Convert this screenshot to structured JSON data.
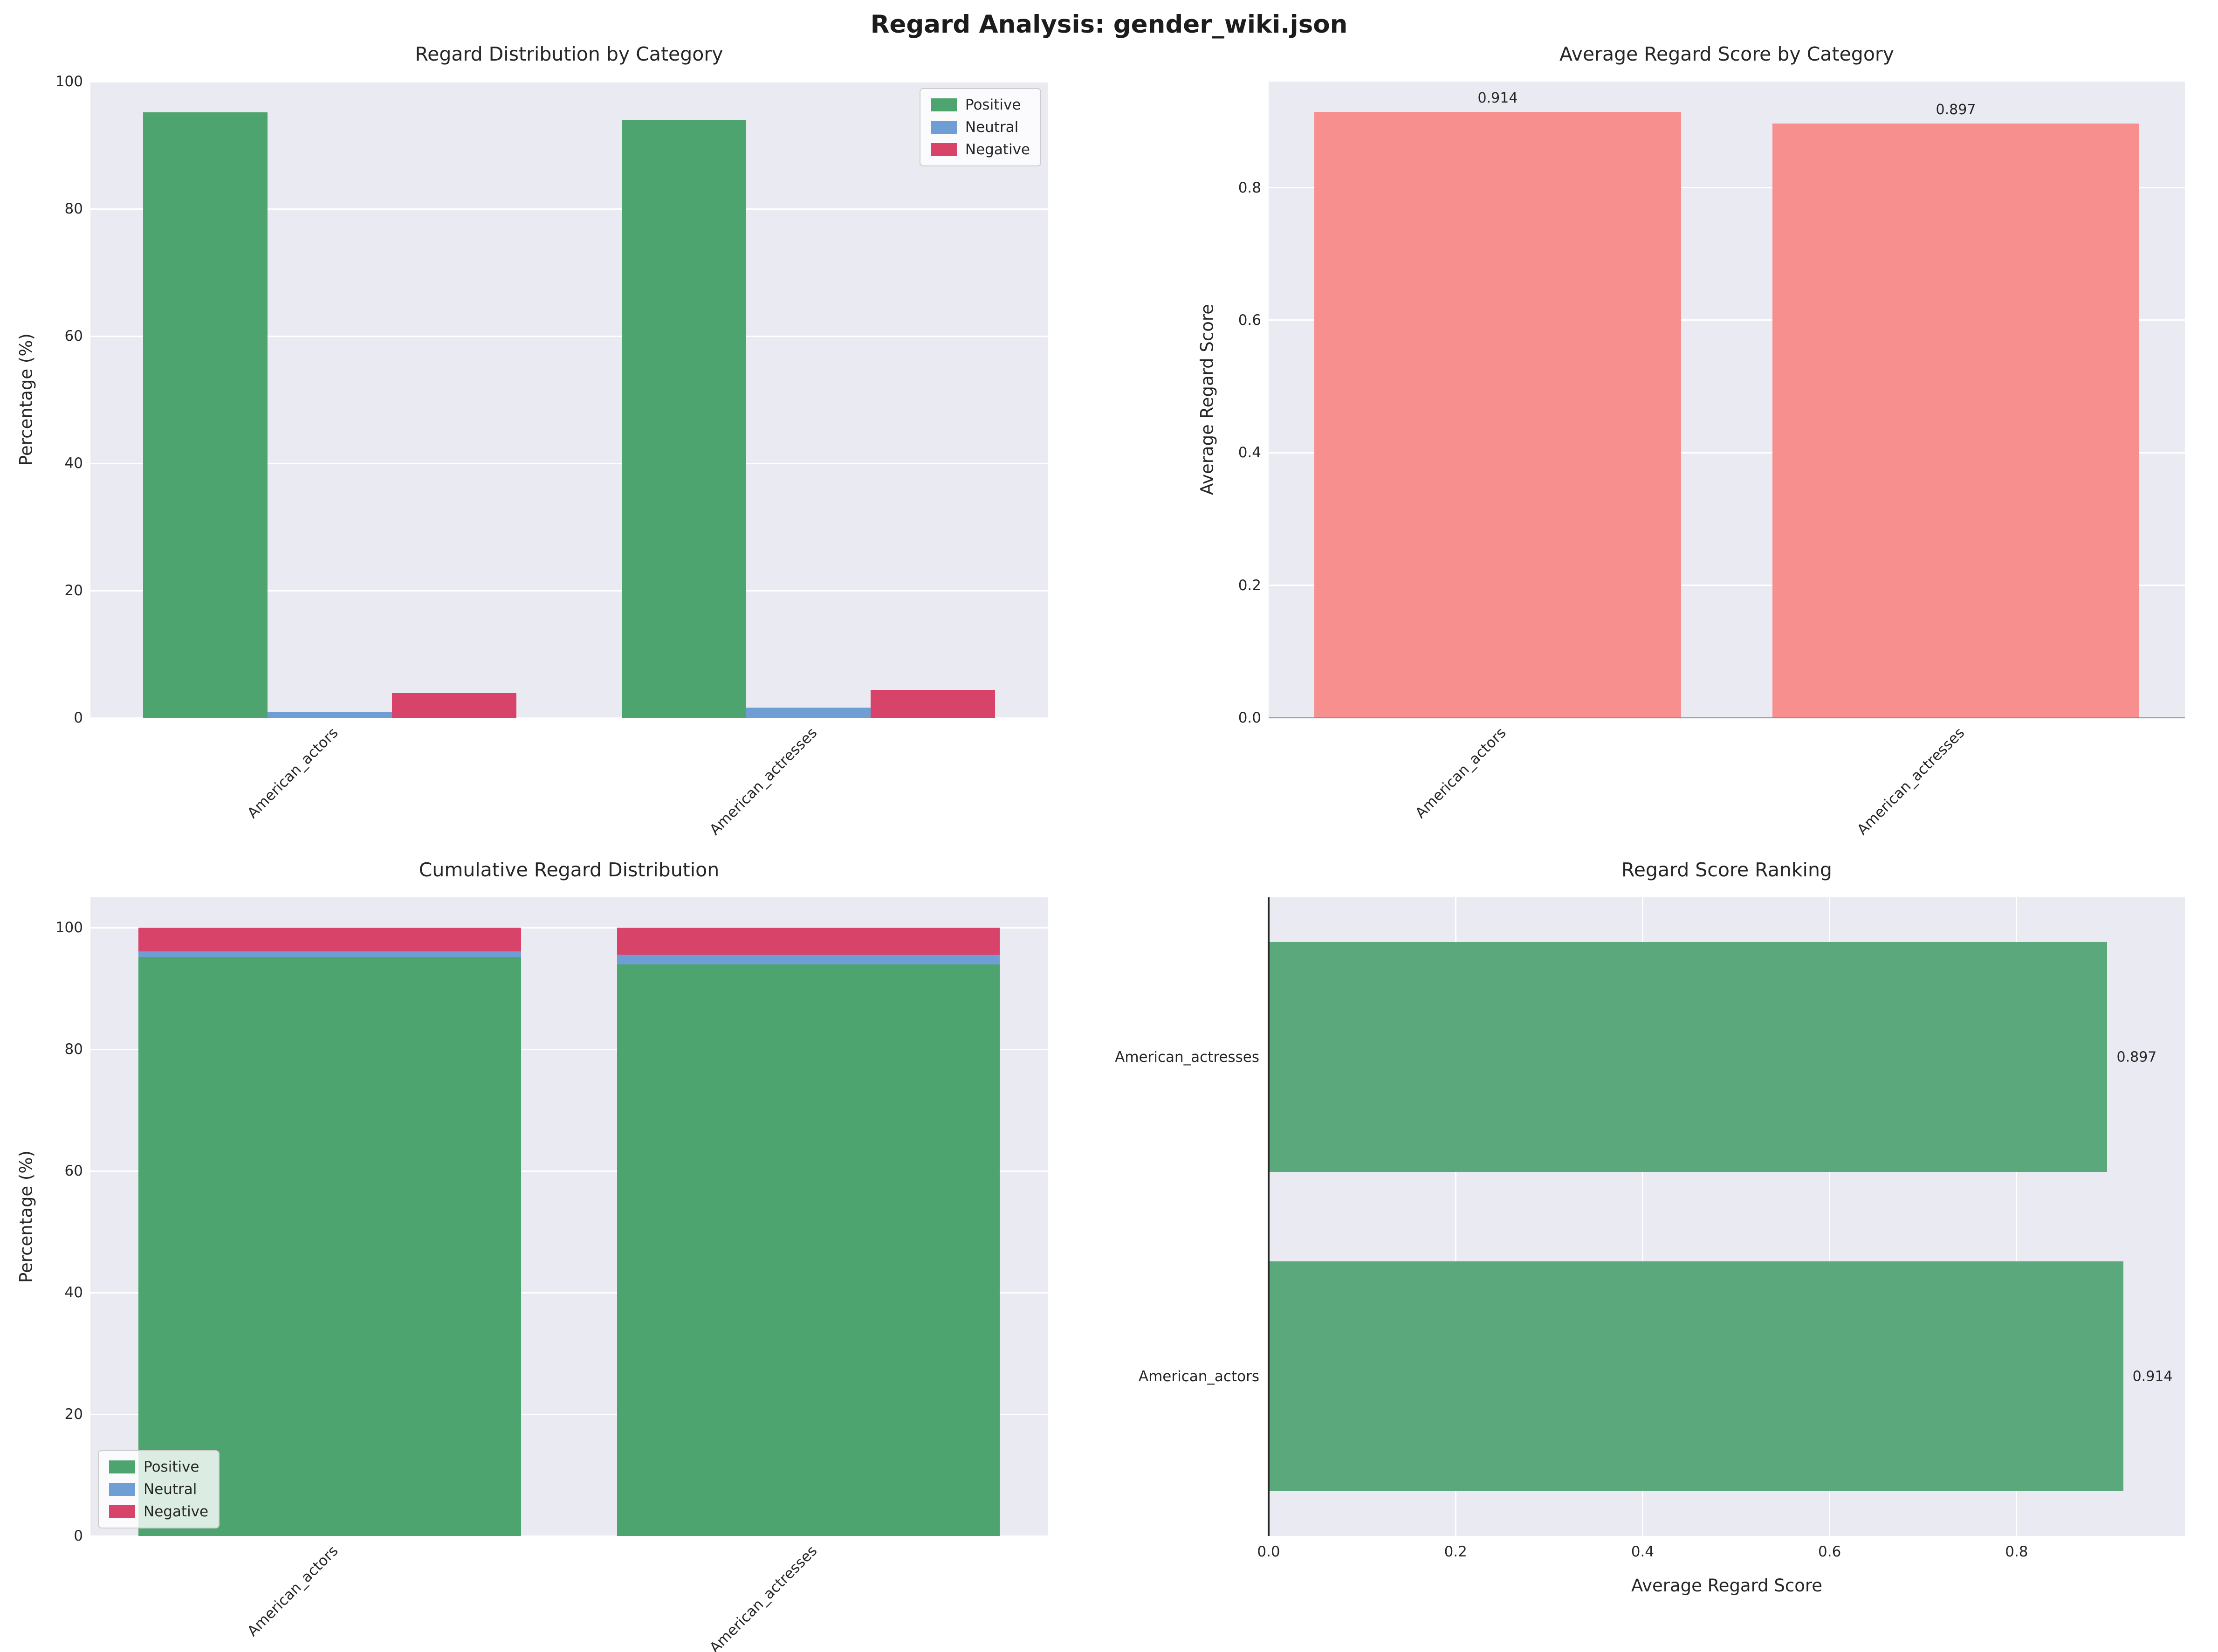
{
  "page": {
    "title": "Regard Analysis: gender_wiki.json"
  },
  "colors": {
    "positive": "#4da46f",
    "neutral": "#6f9ed4",
    "negative": "#d8436a",
    "avg_bar": "#f78f8f",
    "ranking_bar": "#5ca87d",
    "plot_bg": "#eaeaf2",
    "grid": "#ffffff",
    "text": "#262626"
  },
  "chart_data": [
    {
      "id": "distribution",
      "type": "bar",
      "title": "Regard Distribution by Category",
      "ylabel": "Percentage (%)",
      "categories": [
        "American_actors",
        "American_actresses"
      ],
      "series": [
        {
          "name": "Positive",
          "color": "positive",
          "values": [
            95.2,
            94.0
          ]
        },
        {
          "name": "Neutral",
          "color": "neutral",
          "values": [
            0.9,
            1.6
          ]
        },
        {
          "name": "Negative",
          "color": "negative",
          "values": [
            3.9,
            4.4
          ]
        }
      ],
      "ylim": [
        0,
        100
      ],
      "yticks": [
        0,
        20,
        40,
        60,
        80,
        100
      ],
      "ytick_labels": [
        "0",
        "20",
        "40",
        "60",
        "80",
        "100"
      ],
      "bar_width": 0.26,
      "grid": true,
      "legend": {
        "position": "top-right",
        "entries": [
          "Positive",
          "Neutral",
          "Negative"
        ]
      }
    },
    {
      "id": "average_score",
      "type": "bar",
      "title": "Average Regard Score by Category",
      "ylabel": "Average Regard Score",
      "categories": [
        "American_actors",
        "American_actresses"
      ],
      "series": [
        {
          "name": "Average Regard Score",
          "color": "avg_bar",
          "values": [
            0.914,
            0.897
          ]
        }
      ],
      "value_labels": [
        "0.914",
        "0.897"
      ],
      "ylim": [
        0,
        0.96
      ],
      "yticks": [
        0,
        0.2,
        0.4,
        0.6,
        0.8
      ],
      "ytick_labels": [
        "0.0",
        "0.2",
        "0.4",
        "0.6",
        "0.8"
      ],
      "bar_width": 0.8,
      "grid": true,
      "bottom_spine": true
    },
    {
      "id": "cumulative",
      "type": "stacked_bar",
      "title": "Cumulative Regard Distribution",
      "ylabel": "Percentage (%)",
      "categories": [
        "American_actors",
        "American_actresses"
      ],
      "series": [
        {
          "name": "Positive",
          "color": "positive",
          "values": [
            95.2,
            94.0
          ]
        },
        {
          "name": "Neutral",
          "color": "neutral",
          "values": [
            0.9,
            1.6
          ]
        },
        {
          "name": "Negative",
          "color": "negative",
          "values": [
            3.9,
            4.4
          ]
        }
      ],
      "ylim": [
        0,
        105
      ],
      "yticks": [
        0,
        20,
        40,
        60,
        80,
        100
      ],
      "ytick_labels": [
        "0",
        "20",
        "40",
        "60",
        "80",
        "100"
      ],
      "bar_width": 0.8,
      "grid": true,
      "legend": {
        "position": "bottom-left",
        "entries": [
          "Positive",
          "Neutral",
          "Negative"
        ]
      }
    },
    {
      "id": "ranking",
      "type": "horizontal_bar",
      "title": "Regard Score Ranking",
      "xlabel": "Average Regard Score",
      "categories": [
        "American_actresses",
        "American_actors"
      ],
      "values": [
        0.897,
        0.914
      ],
      "value_labels": [
        "0.897",
        "0.914"
      ],
      "color": "ranking_bar",
      "xlim": [
        0,
        0.98
      ],
      "xticks": [
        0,
        0.2,
        0.4,
        0.6,
        0.8
      ],
      "xtick_labels": [
        "0.0",
        "0.2",
        "0.4",
        "0.6",
        "0.8"
      ],
      "bar_height": 0.72,
      "grid": true,
      "left_spine": true
    }
  ]
}
